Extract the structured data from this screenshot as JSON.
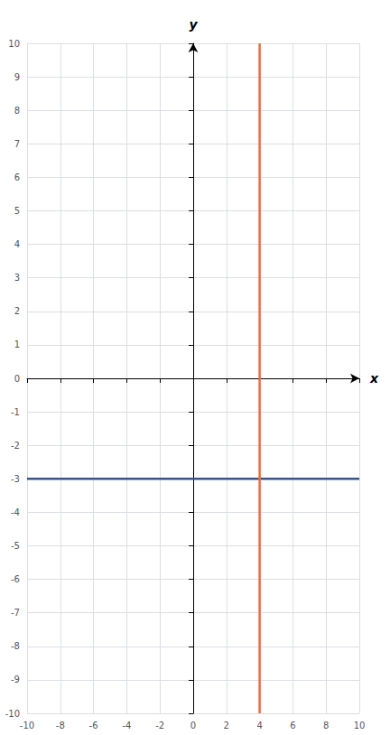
{
  "chart_data": {
    "type": "line",
    "xlabel": "x",
    "ylabel": "y",
    "xlim": [
      -10,
      10
    ],
    "ylim": [
      -10,
      10
    ],
    "xticks": [
      -10,
      -8,
      -6,
      -4,
      -2,
      0,
      2,
      4,
      6,
      8,
      10
    ],
    "yticks": [
      -10,
      -9,
      -8,
      -7,
      -6,
      -5,
      -4,
      -3,
      -2,
      -1,
      0,
      1,
      2,
      3,
      4,
      5,
      6,
      7,
      8,
      9,
      10
    ],
    "grid": true,
    "series": [
      {
        "color": "#34558b",
        "x": [
          -10,
          10
        ],
        "values": [
          -3,
          -3
        ]
      },
      {
        "color": "#e07040",
        "x": [
          4,
          4
        ],
        "values": [
          -10,
          10
        ]
      }
    ]
  }
}
